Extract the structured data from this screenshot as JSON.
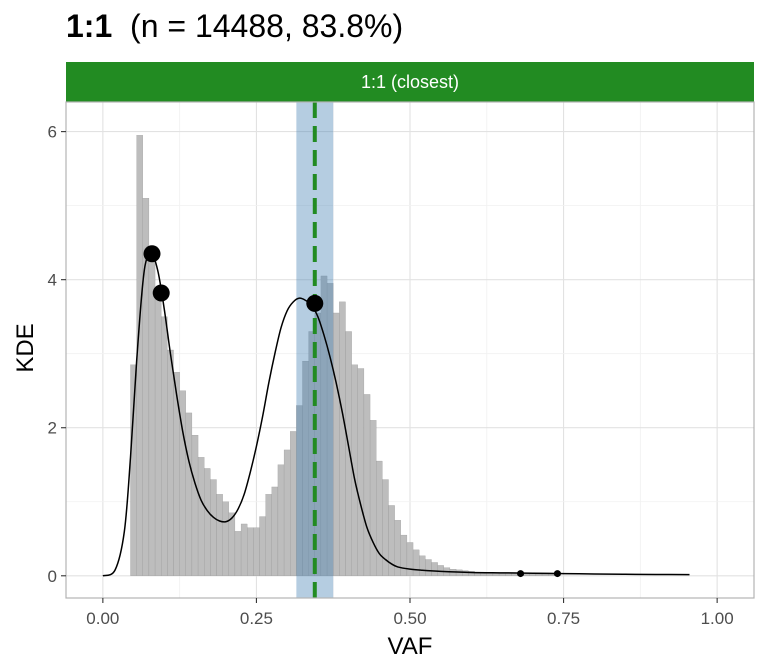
{
  "title": {
    "main": "1:1",
    "detail": "(n = 14488, 83.8%)"
  },
  "strip_label": "1:1 (closest)",
  "colors": {
    "strip": "#228B22",
    "histogram_fill": "#bdbdbd",
    "histogram_stroke": "#8c8c8c",
    "band": "#4682B4",
    "vline": "#228B22",
    "kde_line": "#000000",
    "points": "#000000",
    "grid": "#e2e2e2",
    "panel_border": "#b3b3b3"
  },
  "chart_data": {
    "type": "histogram",
    "xlabel": "VAF",
    "ylabel": "KDE",
    "xlim": [
      -0.06,
      1.06
    ],
    "ylim": [
      -0.3,
      6.4
    ],
    "xticks": [
      0.0,
      0.25,
      0.5,
      0.75,
      1.0
    ],
    "xtick_labels": [
      "0.00",
      "0.25",
      "0.50",
      "0.75",
      "1.00"
    ],
    "yticks": [
      0,
      2,
      4,
      6
    ],
    "ytick_labels": [
      "0",
      "2",
      "4",
      "6"
    ],
    "grid": true,
    "bins": {
      "start": 0.045,
      "width": 0.01,
      "heights": [
        2.85,
        5.95,
        5.1,
        4.3,
        3.8,
        3.5,
        3.05,
        2.75,
        2.5,
        2.2,
        1.9,
        1.6,
        1.45,
        1.3,
        1.1,
        1.0,
        0.85,
        0.6,
        0.7,
        0.65,
        0.65,
        0.8,
        1.1,
        1.2,
        1.5,
        1.7,
        1.95,
        2.3,
        2.9,
        3.3,
        3.55,
        4.05,
        3.95,
        3.55,
        3.7,
        3.3,
        2.85,
        2.8,
        2.45,
        2.1,
        1.55,
        1.3,
        0.95,
        0.75,
        0.55,
        0.45,
        0.35,
        0.27,
        0.22,
        0.18,
        0.14,
        0.11,
        0.09,
        0.08,
        0.07,
        0.06,
        0.05,
        0.05,
        0.045,
        0.04,
        0.04,
        0.035,
        0.035,
        0.03,
        0.03,
        0.03,
        0.025,
        0.025,
        0.025,
        0.02
      ]
    },
    "kde": {
      "x": [
        0.0,
        0.02,
        0.035,
        0.045,
        0.055,
        0.065,
        0.072,
        0.08,
        0.09,
        0.1,
        0.11,
        0.12,
        0.13,
        0.14,
        0.15,
        0.16,
        0.17,
        0.18,
        0.19,
        0.2,
        0.21,
        0.22,
        0.23,
        0.24,
        0.25,
        0.26,
        0.27,
        0.28,
        0.29,
        0.3,
        0.31,
        0.32,
        0.33,
        0.34,
        0.35,
        0.36,
        0.37,
        0.38,
        0.39,
        0.4,
        0.41,
        0.42,
        0.43,
        0.44,
        0.45,
        0.46,
        0.47,
        0.48,
        0.5,
        0.52,
        0.55,
        0.6,
        0.65,
        0.7,
        0.75,
        0.8,
        0.85,
        0.9,
        0.955
      ],
      "y": [
        0.0,
        0.08,
        0.6,
        1.6,
        2.9,
        3.95,
        4.3,
        4.35,
        4.1,
        3.6,
        3.0,
        2.45,
        1.95,
        1.55,
        1.25,
        1.02,
        0.88,
        0.79,
        0.74,
        0.73,
        0.78,
        0.9,
        1.1,
        1.4,
        1.75,
        2.15,
        2.6,
        3.0,
        3.35,
        3.58,
        3.7,
        3.75,
        3.72,
        3.65,
        3.5,
        3.25,
        2.95,
        2.6,
        2.2,
        1.75,
        1.3,
        0.95,
        0.65,
        0.45,
        0.3,
        0.22,
        0.16,
        0.12,
        0.09,
        0.075,
        0.06,
        0.045,
        0.04,
        0.035,
        0.03,
        0.025,
        0.02,
        0.018,
        0.015
      ]
    },
    "peaks": {
      "large": [
        {
          "x": 0.08,
          "y": 4.35
        },
        {
          "x": 0.095,
          "y": 3.82
        },
        {
          "x": 0.345,
          "y": 3.68
        }
      ],
      "small": [
        {
          "x": 0.68,
          "y": 0.03
        },
        {
          "x": 0.74,
          "y": 0.03
        }
      ]
    },
    "band": {
      "xmin": 0.315,
      "xmax": 0.375
    },
    "vline": {
      "x": 0.345
    }
  }
}
